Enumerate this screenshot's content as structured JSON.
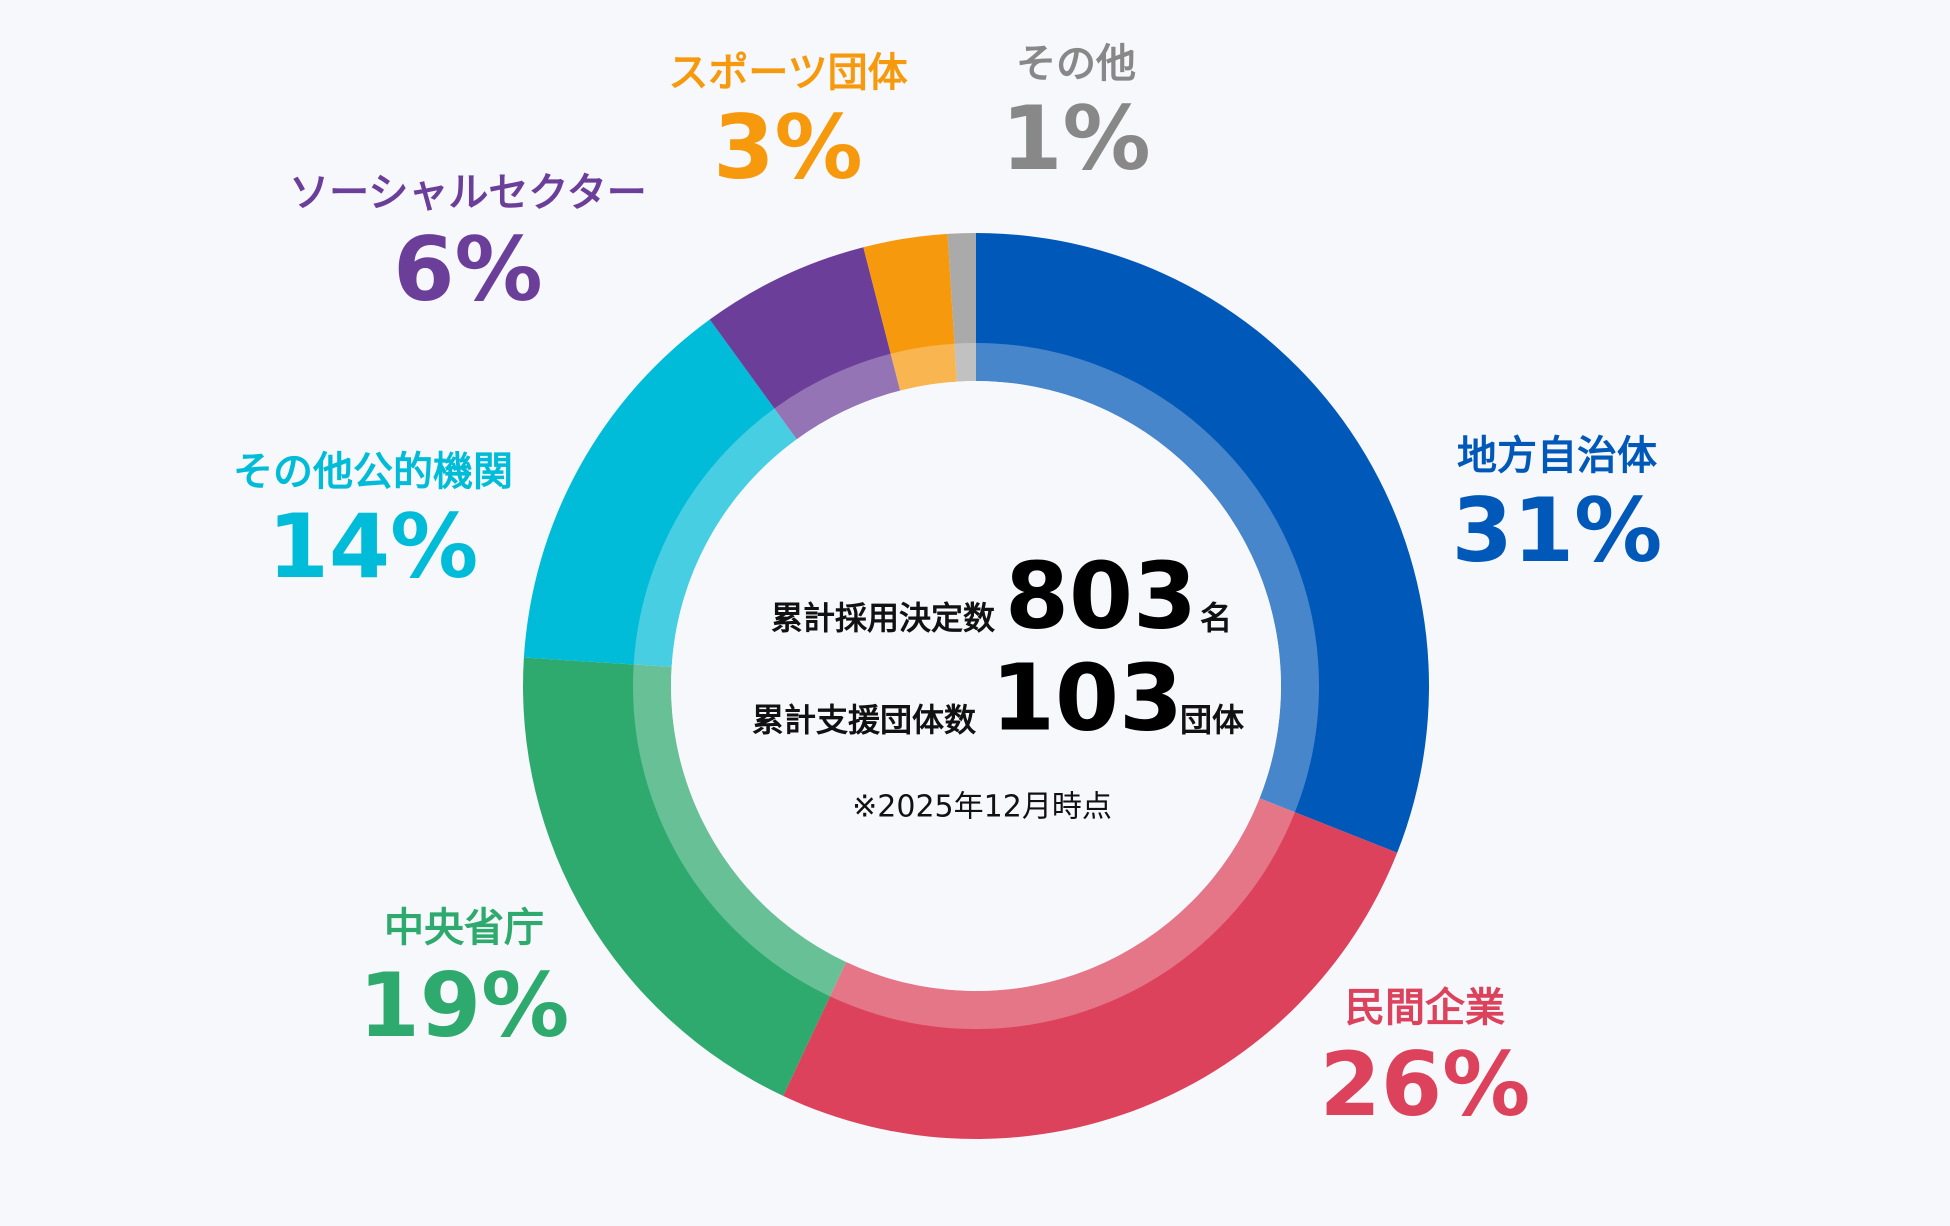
{
  "chart_data": {
    "type": "donut",
    "categories": [
      "地方自治体",
      "民間企業",
      "中央省庁",
      "その他公的機関",
      "ソーシャルセクター",
      "スポーツ団体",
      "その他"
    ],
    "values": [
      31,
      26,
      19,
      14,
      6,
      3,
      1
    ],
    "value_labels": [
      "31%",
      "26%",
      "19%",
      "14%",
      "6%",
      "3%",
      "1%"
    ],
    "colors": [
      "#0058b8",
      "#dc425b",
      "#2eaa6e",
      "#00bcd8",
      "#6b3f99",
      "#f7990c",
      "#aaaaaa"
    ],
    "label_colors": [
      "#0058b8",
      "#dc425b",
      "#2eaa6e",
      "#00bcd8",
      "#6b3f99",
      "#f7990c",
      "#888888"
    ],
    "center": {
      "hires_label": "累計採用決定数",
      "hires": 803,
      "hires_unit": "名",
      "orgs_label": "累計支援団体数",
      "orgs": 103,
      "orgs_unit": "団体",
      "note": "※2025年12月時点"
    }
  }
}
